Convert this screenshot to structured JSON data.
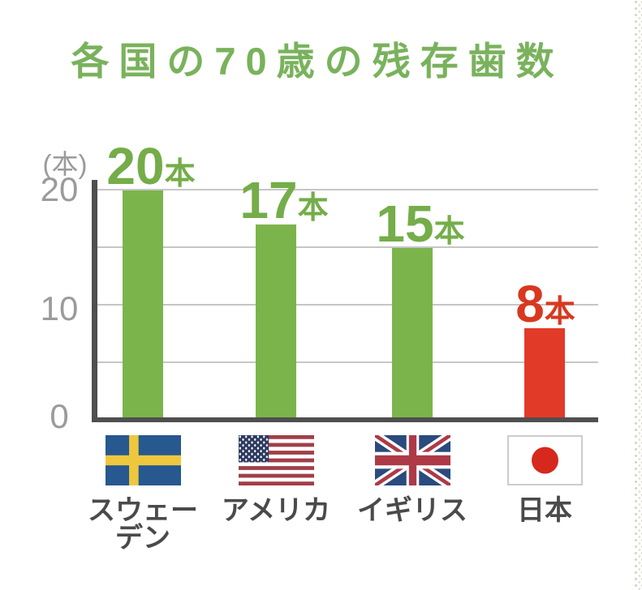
{
  "title": {
    "text": "各国の70歳の残存歯数",
    "color": "#79b25c"
  },
  "colors": {
    "green": "#7cb44c",
    "red": "#e23a28",
    "green_text": "#74ad49",
    "red_text": "#d8381f",
    "axis": "#4f4f4f",
    "grid": "#c6c6c6",
    "tick_text": "#9b9b9b",
    "label_text": "#4a4a4a"
  },
  "chart_data": {
    "type": "bar",
    "title": "各国の70歳の残存歯数",
    "categories": [
      "スウェーデン",
      "アメリカ",
      "イギリス",
      "日本"
    ],
    "categories_display": [
      "スウェー\nデン",
      "アメリカ",
      "イギリス",
      "日本"
    ],
    "values": [
      20,
      17,
      15,
      8
    ],
    "unit": "本",
    "ylabel": "(本)",
    "ylim": [
      0,
      20
    ],
    "yticks": [
      "20",
      "10",
      "0"
    ],
    "grid_step": 5,
    "grid": true,
    "legend": false,
    "bar_colors": [
      "green",
      "green",
      "green",
      "red"
    ],
    "flags": [
      "sweden",
      "usa",
      "uk",
      "japan"
    ]
  }
}
